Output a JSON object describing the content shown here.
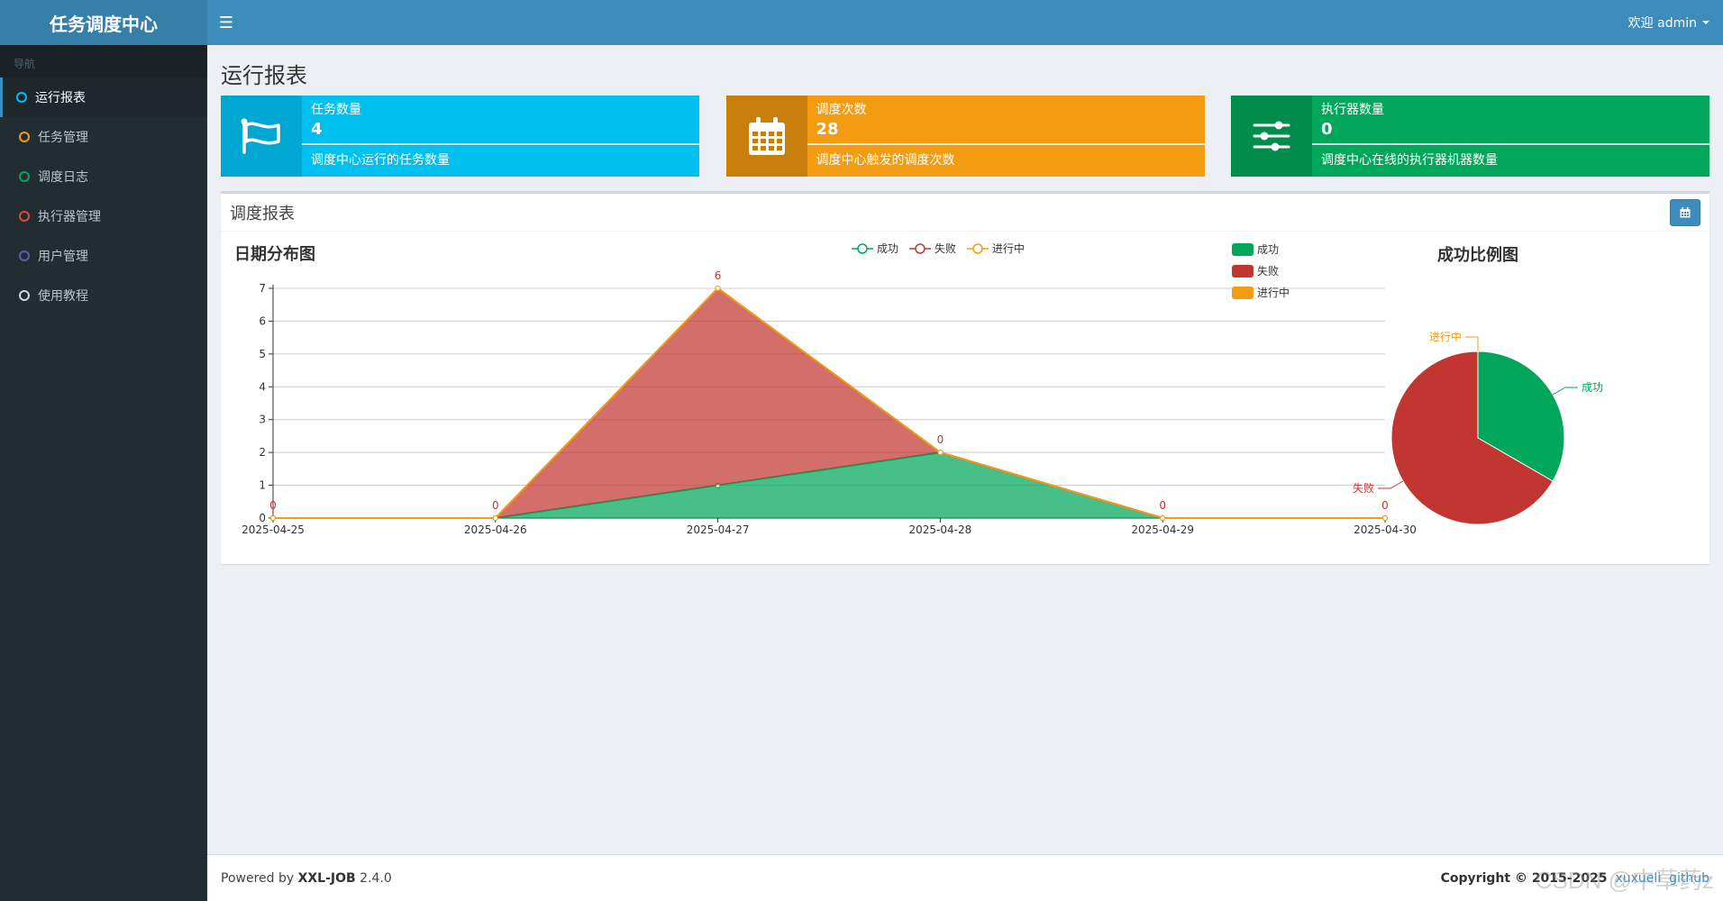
{
  "app": {
    "logo": "任务调度中心"
  },
  "header": {
    "welcome": "欢迎 admin"
  },
  "sidebar": {
    "section": "导航",
    "items": [
      {
        "label": "运行报表",
        "color": "#00c0ef",
        "active": true
      },
      {
        "label": "任务管理",
        "color": "#f39c12",
        "active": false
      },
      {
        "label": "调度日志",
        "color": "#00a65a",
        "active": false
      },
      {
        "label": "执行器管理",
        "color": "#dd4b39",
        "active": false
      },
      {
        "label": "用户管理",
        "color": "#605ca8",
        "active": false
      },
      {
        "label": "使用教程",
        "color": "#d2d6de",
        "active": false
      }
    ]
  },
  "page": {
    "title": "运行报表"
  },
  "cards": [
    {
      "label": "任务数量",
      "value": "4",
      "desc": "调度中心运行的任务数量",
      "color": "#00c0ef",
      "dark": "#00a7d0",
      "icon": "flag-icon"
    },
    {
      "label": "调度次数",
      "value": "28",
      "desc": "调度中心触发的调度次数",
      "color": "#f39c12",
      "dark": "#c87f0a",
      "icon": "calendar-icon"
    },
    {
      "label": "执行器数量",
      "value": "0",
      "desc": "调度中心在线的执行器机器数量",
      "color": "#00a65a",
      "dark": "#008d4c",
      "icon": "sliders-icon"
    }
  ],
  "report": {
    "title": "调度报表"
  },
  "footer": {
    "powered_prefix": "Powered by ",
    "product": "XXL-JOB",
    "version": " 2.4.0",
    "copyright": "Copyright © 2015-2025",
    "link1": "xuxueli",
    "link2": "github",
    "watermark": "CSDN @中草药z"
  },
  "chart_data": [
    {
      "type": "area",
      "title": "日期分布图",
      "categories": [
        "2025-04-25",
        "2025-04-26",
        "2025-04-27",
        "2025-04-28",
        "2025-04-29",
        "2025-04-30"
      ],
      "ylim": [
        0,
        7
      ],
      "yticks": [
        0,
        1,
        2,
        3,
        4,
        5,
        6,
        7
      ],
      "stacked": true,
      "legend_position": "top",
      "series": [
        {
          "name": "成功",
          "values": [
            0,
            0,
            1,
            2,
            0,
            0
          ],
          "color": "#00a65a"
        },
        {
          "name": "失败",
          "values": [
            0,
            0,
            6,
            0,
            0,
            0
          ],
          "color": "#c23632"
        },
        {
          "name": "进行中",
          "values": [
            0,
            0,
            0,
            0,
            0,
            0
          ],
          "color": "#f39c12"
        }
      ],
      "data_labels": [
        "0",
        "0",
        "6",
        "0",
        "0",
        "0"
      ]
    },
    {
      "type": "pie",
      "title": "成功比例图",
      "legend_position": "left",
      "slices": [
        {
          "name": "成功",
          "value": 3,
          "color": "#00a65a"
        },
        {
          "name": "失败",
          "value": 6,
          "color": "#c23632"
        },
        {
          "name": "进行中",
          "value": 0,
          "color": "#f39c12"
        }
      ]
    }
  ]
}
